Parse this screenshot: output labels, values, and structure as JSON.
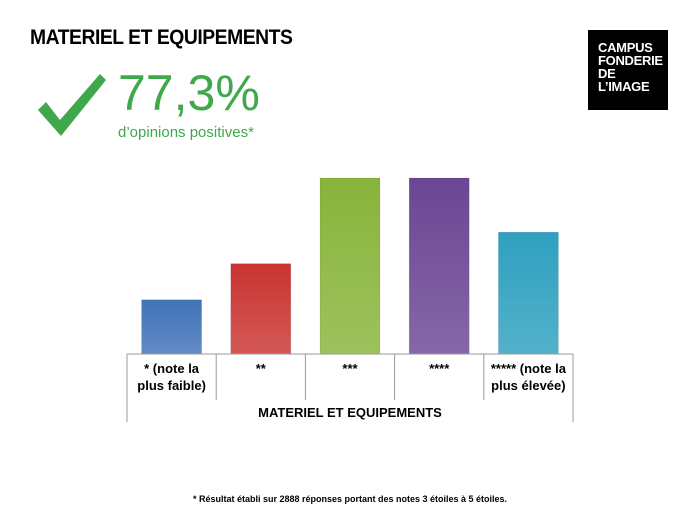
{
  "title": "MATERIEL ET EQUIPEMENTS",
  "highlight": {
    "value": "77,3%",
    "caption": "d’opinions positives*",
    "icon": "checkmark-icon",
    "color": "#3fa84a"
  },
  "logo": {
    "lines": [
      "CAMPUS",
      "FONDERIE",
      "DE",
      "L’IMAGE"
    ]
  },
  "chart_data": {
    "type": "bar",
    "categories": [
      "* (note la plus faible)",
      "**",
      "***",
      "****",
      "***** (note la plus élevée)"
    ],
    "category_lines": [
      [
        "* (note la",
        "plus faible)"
      ],
      [
        "**"
      ],
      [
        "***"
      ],
      [
        "****"
      ],
      [
        "***** (note la",
        "plus élevée)"
      ]
    ],
    "values": [
      12,
      20,
      39,
      39,
      27
    ],
    "colors": [
      "#3f73b8",
      "#c93431",
      "#88b43a",
      "#6b4694",
      "#2ea0bf"
    ],
    "xlabel": "MATERIEL ET EQUIPEMENTS",
    "ylabel": "",
    "ylim": [
      0,
      40
    ],
    "grid": false,
    "legend": "none"
  },
  "footnote": "* Résultat établi sur 2888 réponses portant des notes 3 étoiles à 5 étoiles."
}
